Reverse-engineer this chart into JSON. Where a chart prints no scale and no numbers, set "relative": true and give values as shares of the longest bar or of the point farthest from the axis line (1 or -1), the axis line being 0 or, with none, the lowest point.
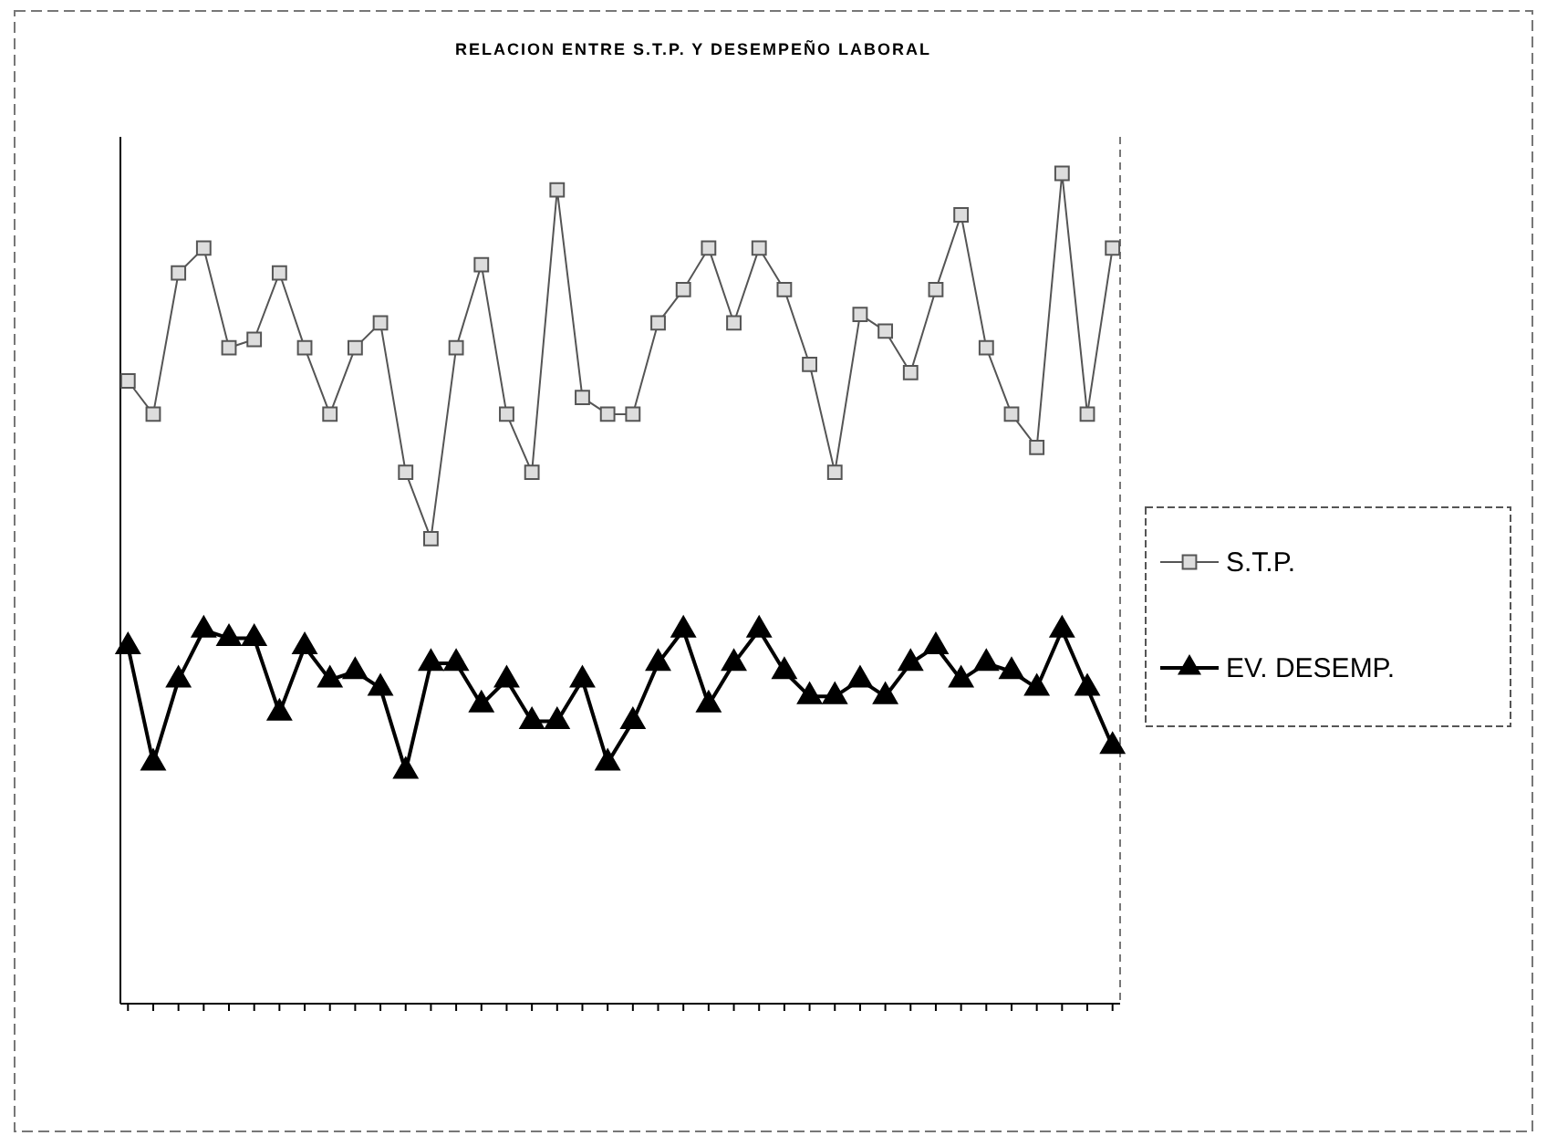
{
  "chart_data": {
    "type": "line",
    "title": "RELACION ENTRE S.T.P. Y DESEMPEÑO LABORAL",
    "relative": true,
    "legend": "right",
    "categories": [
      null,
      null,
      null,
      null,
      null,
      null,
      null,
      null,
      null,
      null,
      null,
      null,
      null,
      null,
      null,
      null,
      null,
      null,
      null,
      null,
      null,
      null,
      null,
      null,
      null,
      null,
      null,
      null,
      null,
      null,
      null,
      null,
      null,
      null,
      null,
      null,
      null,
      null,
      null,
      null
    ],
    "series": [
      {
        "name": "S.T.P.",
        "color": "#555555",
        "marker": "square",
        "values": [
          0.75,
          0.71,
          0.88,
          0.91,
          0.79,
          0.8,
          0.88,
          0.79,
          0.71,
          0.79,
          0.82,
          0.64,
          0.56,
          0.79,
          0.89,
          0.71,
          0.64,
          0.98,
          0.73,
          0.71,
          0.71,
          0.82,
          0.86,
          0.91,
          0.82,
          0.91,
          0.86,
          0.77,
          0.64,
          0.83,
          0.81,
          0.76,
          0.86,
          0.95,
          0.79,
          0.71,
          0.67,
          1,
          0.71,
          0.91
        ]
      },
      {
        "name": "EV. DESEMP.",
        "color": "#000000",
        "marker": "triangle",
        "values": [
          0.43,
          0.29,
          0.39,
          0.45,
          0.44,
          0.44,
          0.35,
          0.43,
          0.39,
          0.4,
          0.38,
          0.28,
          0.41,
          0.41,
          0.36,
          0.39,
          0.34,
          0.34,
          0.39,
          0.29,
          0.34,
          0.41,
          0.45,
          0.36,
          0.41,
          0.45,
          0.4,
          0.37,
          0.37,
          0.39,
          0.37,
          0.41,
          0.43,
          0.39,
          0.41,
          0.4,
          0.38,
          0.45,
          0.38,
          0.31
        ]
      }
    ]
  }
}
